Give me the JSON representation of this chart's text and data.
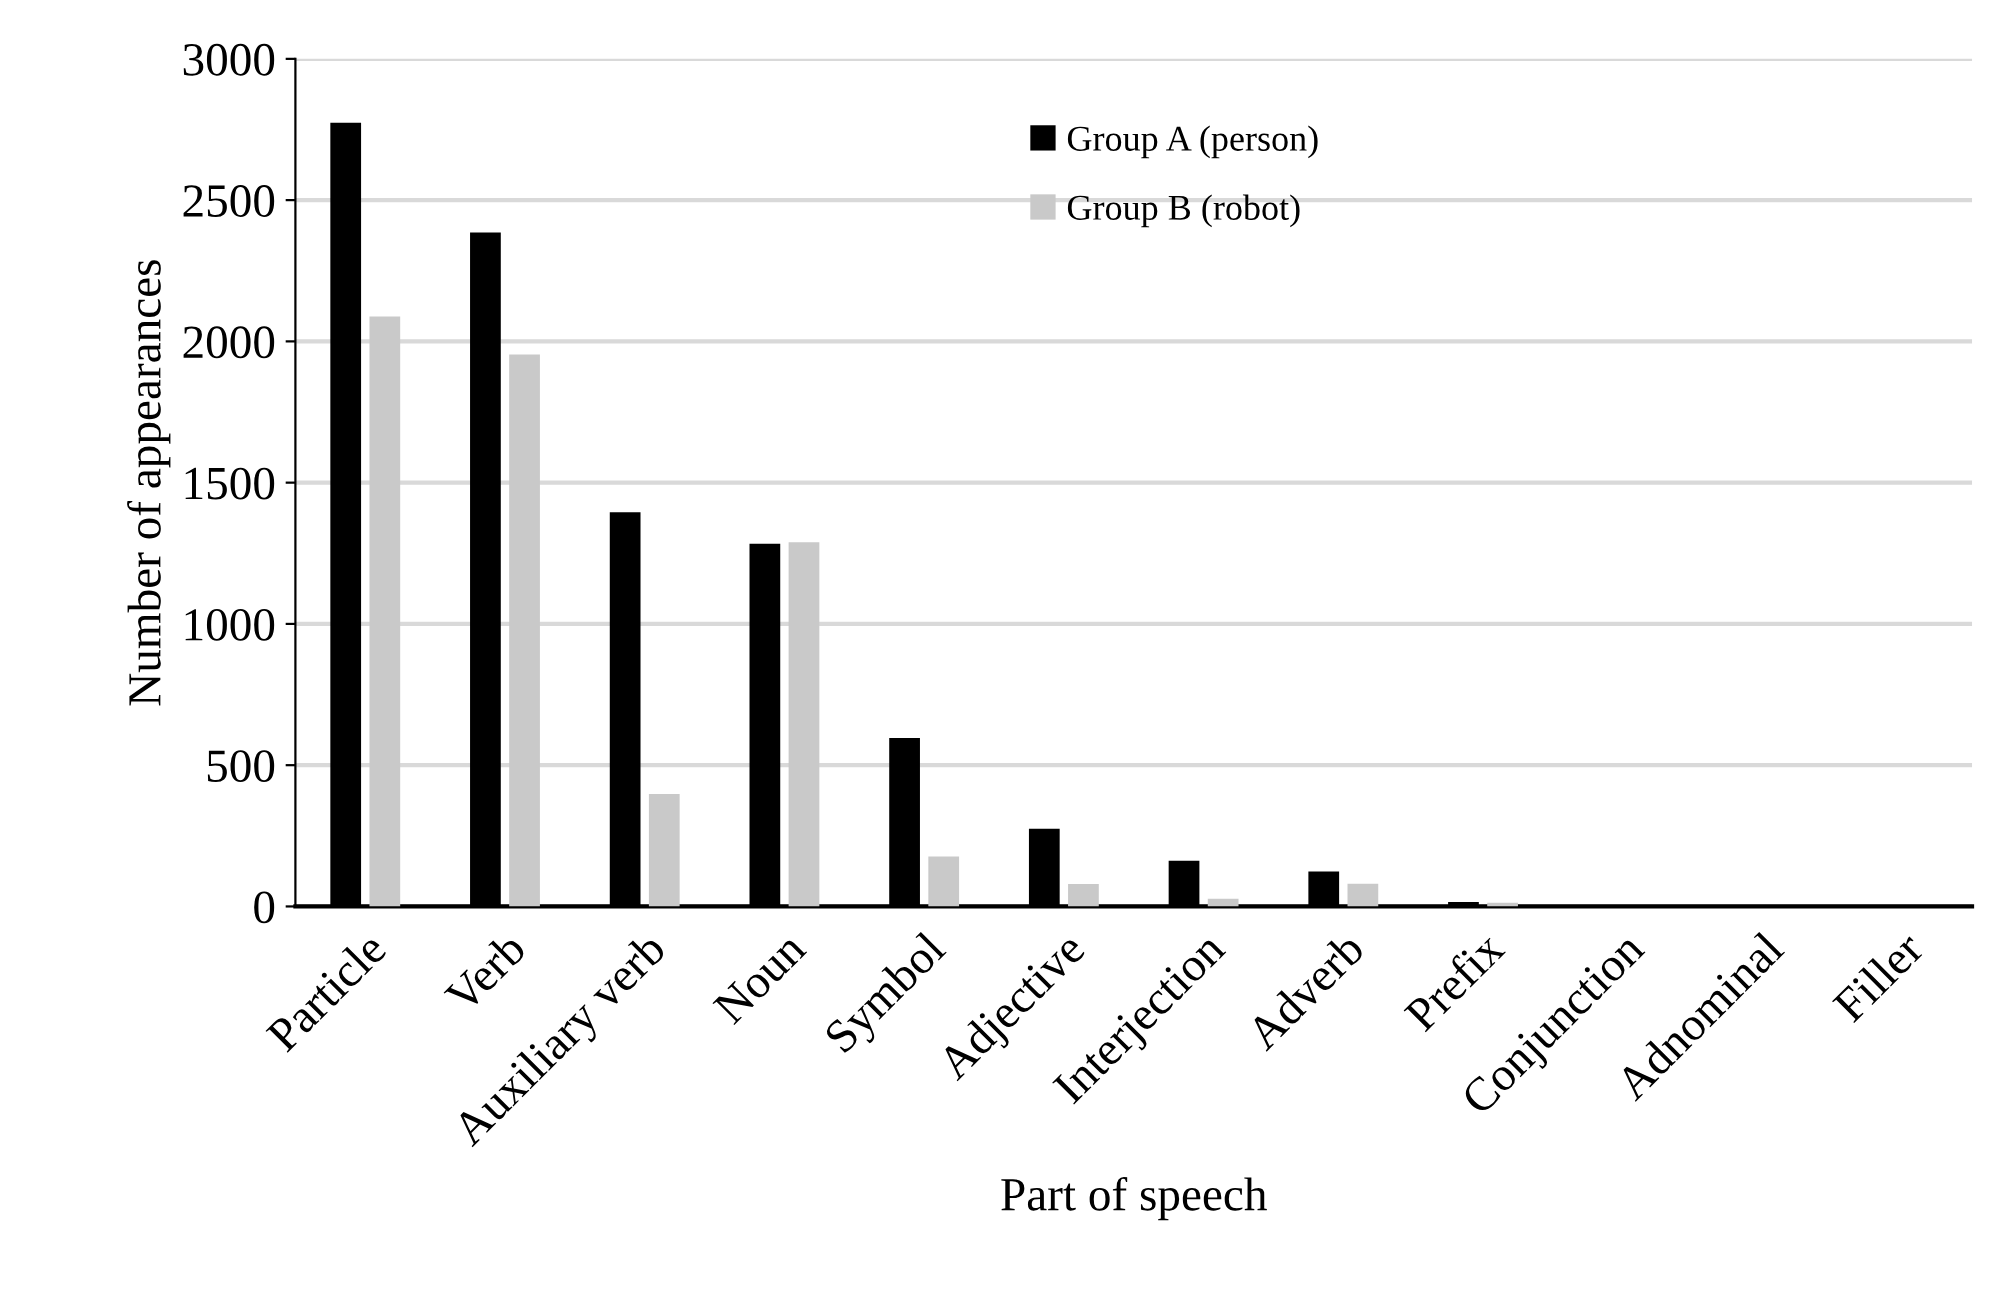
{
  "chart_data": {
    "type": "bar",
    "xlabel": "Part of speech",
    "ylabel": "Number of appearances",
    "categories": [
      "Particle",
      "Verb",
      "Auxiliary verb",
      "Noun",
      "Symbol",
      "Adjective",
      "Interjection",
      "Adverb",
      "Prefix",
      "Conjunction",
      "Adnominal",
      "Filler"
    ],
    "series": [
      {
        "name": "Group A (person)",
        "color": "#000000",
        "values": [
          2774,
          2385,
          1395,
          1284,
          596,
          275,
          162,
          124,
          16,
          4,
          1,
          0
        ]
      },
      {
        "name": "Group B (robot)",
        "color": "#c9c9c9",
        "values": [
          2088,
          1954,
          398,
          1289,
          177,
          79,
          27,
          80,
          13,
          null,
          0,
          0
        ]
      }
    ],
    "ylim": [
      0,
      3000
    ],
    "yticks": [
      0,
      500,
      1000,
      1500,
      2000,
      2500,
      3000
    ],
    "grid": "y",
    "legend": "top right"
  }
}
